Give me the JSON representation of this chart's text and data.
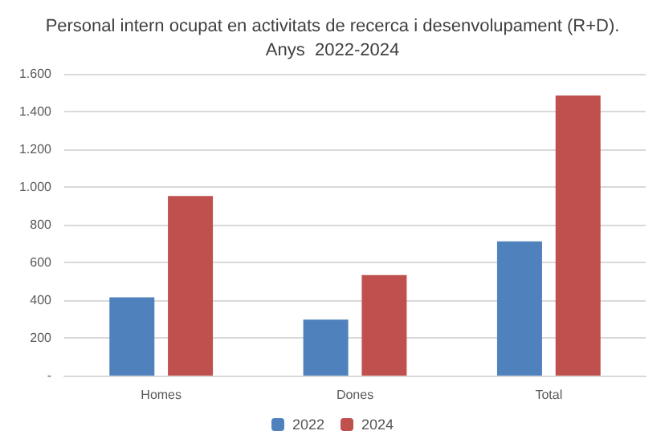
{
  "chart_data": {
    "type": "bar",
    "title": "Personal intern ocupat en activitats de recerca i desenvolupament (R+D).\nAnys  2022-2024",
    "categories": [
      "Homes",
      "Dones",
      "Total"
    ],
    "series": [
      {
        "name": "2022",
        "color": "#4f81bd",
        "values": [
          415,
          297,
          712
        ]
      },
      {
        "name": "2024",
        "color": "#c0504d",
        "values": [
          952,
          533,
          1485
        ]
      }
    ],
    "ylim": [
      0,
      1600
    ],
    "yticks": [
      {
        "value": 0,
        "label": "-"
      },
      {
        "value": 200,
        "label": "200"
      },
      {
        "value": 400,
        "label": "400"
      },
      {
        "value": 600,
        "label": "600"
      },
      {
        "value": 800,
        "label": "800"
      },
      {
        "value": 1000,
        "label": "1.000"
      },
      {
        "value": 1200,
        "label": "1.200"
      },
      {
        "value": 1400,
        "label": "1.400"
      },
      {
        "value": 1600,
        "label": "1.600"
      }
    ],
    "grid": "y",
    "legend": "bottom"
  }
}
